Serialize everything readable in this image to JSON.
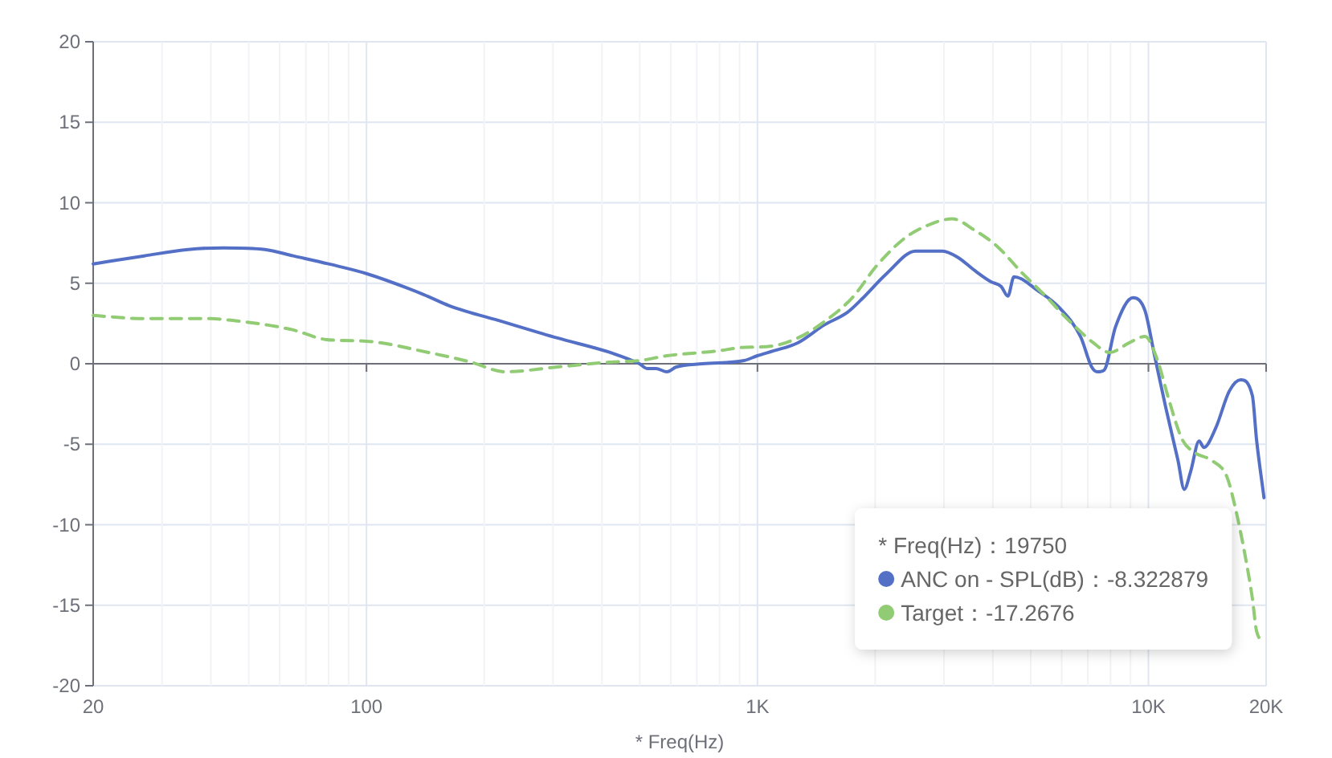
{
  "chart_data": {
    "type": "line",
    "xlabel": "* Freq(Hz)",
    "log": "x",
    "grid": true,
    "legend": "bottom right",
    "legend_title": "* Freq(Hz)：19750",
    "xlim": [
      20,
      20000
    ],
    "xticks": [
      20,
      {
        "value": 30,
        "label": null
      },
      {
        "value": 40,
        "label": null
      },
      {
        "value": 50,
        "label": null
      },
      {
        "value": 60,
        "label": null
      },
      {
        "value": 70,
        "label": null
      },
      {
        "value": 80,
        "label": null
      },
      {
        "value": 90,
        "label": null
      },
      100,
      {
        "value": 200,
        "label": null
      },
      {
        "value": 300,
        "label": null
      },
      {
        "value": 400,
        "label": null
      },
      {
        "value": 500,
        "label": null
      },
      {
        "value": 600,
        "label": null
      },
      {
        "value": 700,
        "label": null
      },
      {
        "value": 800,
        "label": null
      },
      {
        "value": 900,
        "label": null
      },
      {
        "value": 1000,
        "label": "1K"
      },
      {
        "value": 2000,
        "label": null
      },
      {
        "value": 3000,
        "label": null
      },
      {
        "value": 4000,
        "label": null
      },
      {
        "value": 5000,
        "label": null
      },
      {
        "value": 6000,
        "label": null
      },
      {
        "value": 7000,
        "label": null
      },
      {
        "value": 8000,
        "label": null
      },
      {
        "value": 9000,
        "label": null
      },
      {
        "value": 10000,
        "label": "10K"
      },
      {
        "value": 20000,
        "label": "20K"
      }
    ],
    "ylim": [
      -20,
      20
    ],
    "yticks": [
      -20,
      -15,
      -10,
      -5,
      0,
      5,
      10,
      15,
      20
    ],
    "series": [
      {
        "name": "ANC on - SPL(dB)",
        "color": "#5470c6",
        "line_style": "solid",
        "x": [
          20,
          27,
          35,
          43,
          55,
          65,
          80,
          100,
          140,
          163,
          224,
          308,
          420,
          499,
          523,
          550,
          587,
          620,
          723,
          925,
          1000,
          1100,
          1268,
          1480,
          1700,
          1846,
          2140,
          2538,
          2974,
          3260,
          3590,
          3950,
          4200,
          4370,
          4530,
          5240,
          5910,
          6700,
          7160,
          7400,
          7700,
          8240,
          9130,
          9800,
          10330,
          11070,
          11900,
          12350,
          12820,
          13480,
          13860,
          14860,
          16100,
          17220,
          18450,
          18900,
          19750
        ],
        "values": [
          6.2,
          6.7,
          7.1,
          7.2,
          7.1,
          6.7,
          6.2,
          5.6,
          4.3,
          3.6,
          2.6,
          1.6,
          0.7,
          0.0,
          -0.3,
          -0.3,
          -0.5,
          -0.2,
          0.0,
          0.2,
          0.5,
          0.8,
          1.3,
          2.4,
          3.2,
          4.0,
          5.6,
          7.0,
          7.0,
          6.6,
          5.8,
          5.1,
          4.8,
          4.2,
          5.4,
          4.5,
          3.5,
          1.7,
          -0.2,
          -0.5,
          -0.4,
          2.3,
          4.1,
          3.3,
          0.7,
          -2.7,
          -6.0,
          -7.8,
          -6.7,
          -4.8,
          -5.2,
          -4.0,
          -1.7,
          -1.0,
          -2.0,
          -4.7,
          -8.322879
        ]
      },
      {
        "name": "Target",
        "color": "#91cc75",
        "line_style": "dashed",
        "x": [
          20,
          27,
          40,
          45,
          56,
          65,
          79,
          100,
          144,
          185,
          226,
          308,
          420,
          499,
          587,
          795,
          903,
          1090,
          1268,
          1480,
          1748,
          2020,
          2380,
          2790,
          3150,
          3590,
          4100,
          4770,
          5560,
          5910,
          6500,
          7230,
          7960,
          8930,
          9800,
          10520,
          11300,
          12200,
          13100,
          14500,
          15860,
          16700,
          17700,
          18450,
          18900,
          19750
        ],
        "values": [
          3.0,
          2.8,
          2.8,
          2.7,
          2.4,
          2.1,
          1.5,
          1.4,
          0.7,
          0.1,
          -0.5,
          -0.2,
          0.1,
          0.2,
          0.5,
          0.8,
          1.0,
          1.1,
          1.6,
          2.6,
          4.1,
          6.1,
          7.8,
          8.7,
          9.0,
          8.3,
          7.3,
          5.6,
          4.0,
          3.3,
          2.3,
          1.3,
          0.7,
          1.3,
          1.7,
          0.3,
          -2.3,
          -4.7,
          -5.5,
          -6.0,
          -7.0,
          -9.0,
          -12.0,
          -14.6,
          -16.6,
          -17.2676
        ]
      }
    ],
    "annotations": [
      "：-8.322879",
      "：-17.2676"
    ]
  }
}
